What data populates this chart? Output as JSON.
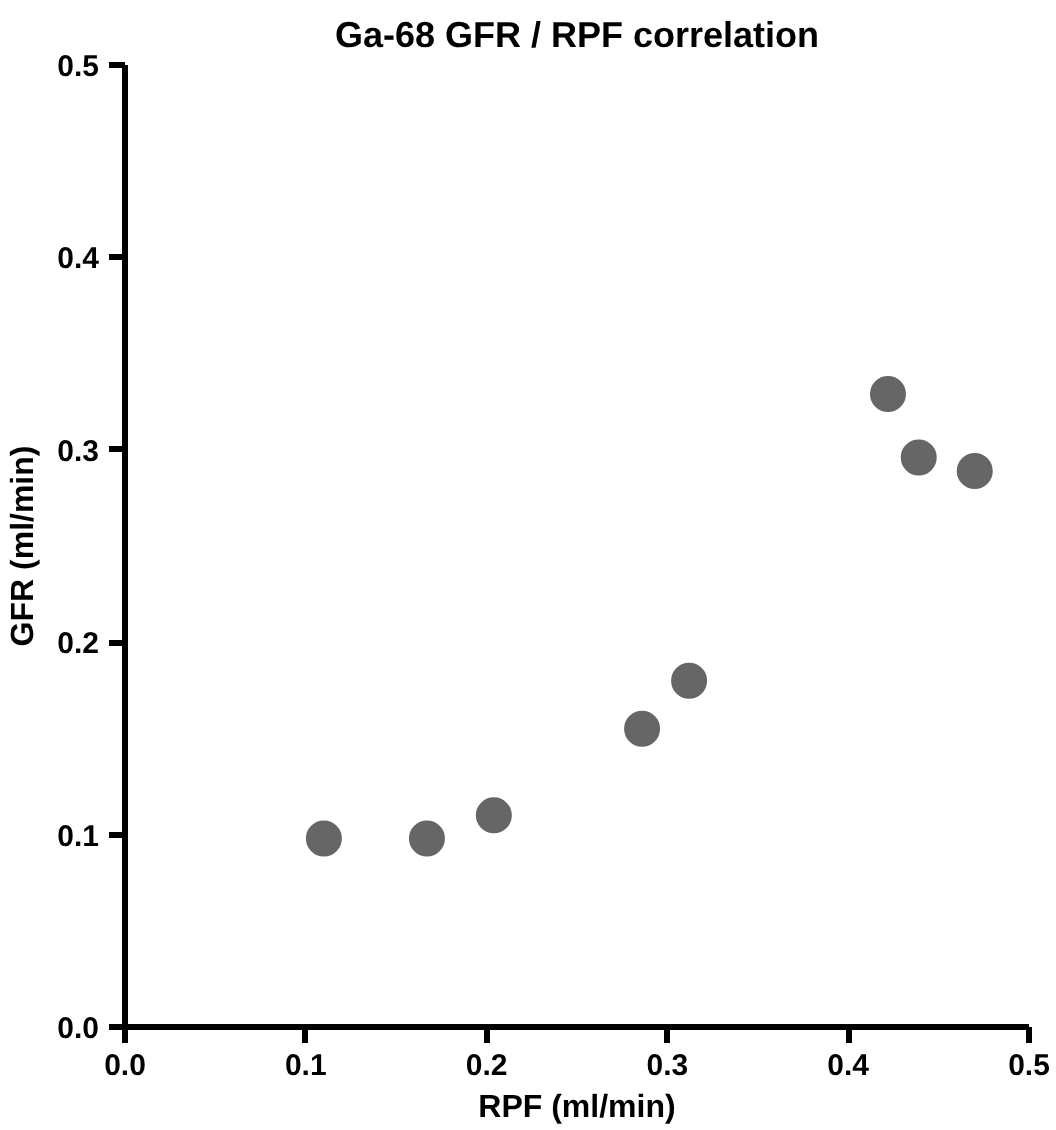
{
  "chart_data": {
    "type": "scatter",
    "title": "Ga-68 GFR / RPF correlation",
    "xlabel": "RPF (ml/min)",
    "ylabel": "GFR (ml/min)",
    "x": [
      0.11,
      0.167,
      0.204,
      0.286,
      0.312,
      0.422,
      0.439,
      0.47
    ],
    "series": [
      {
        "color": "#666666",
        "values": [
          0.098,
          0.098,
          0.11,
          0.155,
          0.18,
          0.329,
          0.296,
          0.289
        ]
      }
    ],
    "xlim": [
      0,
      0.5
    ],
    "ylim": [
      0,
      0.5
    ],
    "xticks": [
      {
        "value": 0,
        "label": "0.0"
      },
      0.1,
      0.2,
      0.3,
      0.4,
      0.5
    ],
    "yticks": [
      {
        "value": 0,
        "label": "0.0"
      },
      0.1,
      0.2,
      0.3,
      0.4,
      0.5
    ],
    "grid": false,
    "marker": "circle"
  }
}
